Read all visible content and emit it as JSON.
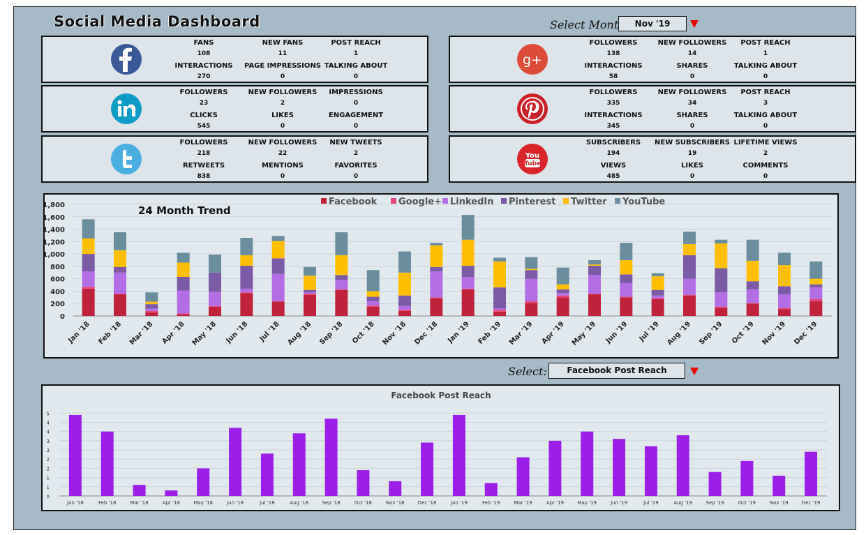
{
  "header": {
    "title": "Social Media Dashboard",
    "month_label": "Select Month",
    "month_value": "Nov '19",
    "select_label": "Select:",
    "select_value": "Facebook Post Reach"
  },
  "cards": [
    {
      "id": "facebook",
      "icon": "facebook-icon",
      "color": "#3b5998",
      "stats": [
        {
          "label": "FANS",
          "value": "108"
        },
        {
          "label": "NEW FANS",
          "value": "11"
        },
        {
          "label": "POST REACH",
          "value": "1"
        },
        {
          "label": "INTERACTIONS",
          "value": "270"
        },
        {
          "label": "PAGE IMPRESSIONS",
          "value": "0"
        },
        {
          "label": "TALKING ABOUT",
          "value": "0"
        }
      ]
    },
    {
      "id": "googleplus",
      "icon": "google-plus-icon",
      "color": "#dd4b39",
      "stats": [
        {
          "label": "FOLLOWERS",
          "value": "138"
        },
        {
          "label": "NEW FOLLOWERS",
          "value": "14"
        },
        {
          "label": "POST REACH",
          "value": "1"
        },
        {
          "label": "INTERACTIONS",
          "value": "58"
        },
        {
          "label": "SHARES",
          "value": "0"
        },
        {
          "label": "TALKING ABOUT",
          "value": "0"
        }
      ]
    },
    {
      "id": "linkedin",
      "icon": "linkedin-icon",
      "color": "#0e9bc6",
      "stats": [
        {
          "label": "FOLLOWERS",
          "value": "23"
        },
        {
          "label": "NEW FOLLOWERS",
          "value": "2"
        },
        {
          "label": "IMPRESSIONS",
          "value": "0"
        },
        {
          "label": "CLICKS",
          "value": "545"
        },
        {
          "label": "LIKES",
          "value": "0"
        },
        {
          "label": "ENGAGEMENT",
          "value": "0"
        }
      ]
    },
    {
      "id": "pinterest",
      "icon": "pinterest-icon",
      "color": "#cb2027",
      "stats": [
        {
          "label": "FOLLOWERS",
          "value": "335"
        },
        {
          "label": "NEW FOLLOWERS",
          "value": "34"
        },
        {
          "label": "POST REACH",
          "value": "3"
        },
        {
          "label": "INTERACTIONS",
          "value": "345"
        },
        {
          "label": "SHARES",
          "value": "0"
        },
        {
          "label": "TALKING ABOUT",
          "value": "0"
        }
      ]
    },
    {
      "id": "twitter",
      "icon": "twitter-icon",
      "color": "#4aaee0",
      "stats": [
        {
          "label": "FOLLOWERS",
          "value": "218"
        },
        {
          "label": "NEW FOLLOWERS",
          "value": "22"
        },
        {
          "label": "NEW TWEETS",
          "value": "2"
        },
        {
          "label": "RETWEETS",
          "value": "838"
        },
        {
          "label": "MENTIONS",
          "value": "0"
        },
        {
          "label": "FAVORITES",
          "value": "0"
        }
      ]
    },
    {
      "id": "youtube",
      "icon": "youtube-icon",
      "color": "#d9252a",
      "stats": [
        {
          "label": "SUBSCRIBERS",
          "value": "194"
        },
        {
          "label": "NEW SUBSCRIBERS",
          "value": "19"
        },
        {
          "label": "LIFETIME VIEWS",
          "value": "2"
        },
        {
          "label": "VIEWS",
          "value": "485"
        },
        {
          "label": "LIKES",
          "value": "0"
        },
        {
          "label": "COMMENTS",
          "value": "0"
        }
      ]
    }
  ],
  "icon_text": {
    "facebook": "f",
    "googleplus": "g+",
    "linkedin": "in",
    "pinterest": "P",
    "youtube_top": "You",
    "youtube_bottom": "Tube"
  },
  "chart_data": [
    {
      "type": "bar",
      "stacked": true,
      "title": "24 Month Trend",
      "categories": [
        "Jan '18",
        "Feb '18",
        "Mar '18",
        "Apr '18",
        "May '18",
        "Jun '18",
        "Jul '18",
        "Aug '18",
        "Sep '18",
        "Oct '18",
        "Nov '18",
        "Dec '18",
        "Jan '19",
        "Feb '19",
        "Mar '19",
        "Apr '19",
        "May '19",
        "Jun '19",
        "Jul '19",
        "Aug '19",
        "Sep '19",
        "Oct '19",
        "Nov '19",
        "Dec '19"
      ],
      "ylim": [
        0,
        1800
      ],
      "yticks": [
        "0",
        "200",
        "400",
        "600",
        "800",
        "1,000",
        "1,200",
        "1,400",
        "1,600",
        "1,800"
      ],
      "legend_position": "top",
      "grid": true,
      "series": [
        {
          "name": "Facebook",
          "color": "#c0223b",
          "values": [
            440,
            350,
            60,
            30,
            150,
            370,
            230,
            340,
            420,
            150,
            80,
            290,
            430,
            70,
            210,
            300,
            350,
            300,
            270,
            330,
            130,
            200,
            110,
            240
          ]
        },
        {
          "name": "Google+",
          "color": "#e8457a",
          "values": [
            30,
            10,
            20,
            10,
            10,
            10,
            10,
            20,
            10,
            20,
            20,
            10,
            10,
            30,
            30,
            30,
            10,
            10,
            20,
            10,
            20,
            10,
            20,
            30
          ]
        },
        {
          "name": "LinkedIn",
          "color": "#b36ee6",
          "values": [
            250,
            340,
            40,
            370,
            230,
            60,
            440,
            20,
            150,
            70,
            60,
            420,
            190,
            20,
            360,
            40,
            300,
            220,
            40,
            260,
            230,
            220,
            220,
            190
          ]
        },
        {
          "name": "Pinterest",
          "color": "#7b5aa6",
          "values": [
            280,
            90,
            70,
            220,
            310,
            370,
            250,
            40,
            80,
            70,
            170,
            70,
            180,
            340,
            140,
            60,
            150,
            140,
            90,
            380,
            390,
            130,
            130,
            50
          ]
        },
        {
          "name": "Twitter",
          "color": "#ffbf00",
          "values": [
            250,
            270,
            40,
            230,
            0,
            170,
            280,
            230,
            320,
            90,
            370,
            350,
            420,
            420,
            20,
            80,
            20,
            230,
            220,
            180,
            400,
            330,
            340,
            90
          ]
        },
        {
          "name": "YouTube",
          "color": "#6b8e9e",
          "values": [
            310,
            290,
            150,
            160,
            290,
            280,
            80,
            140,
            370,
            340,
            340,
            40,
            400,
            60,
            190,
            270,
            70,
            280,
            50,
            200,
            60,
            340,
            200,
            280
          ]
        }
      ]
    },
    {
      "type": "bar",
      "title": "Facebook Post Reach",
      "categories": [
        "Jan '18",
        "Feb '18",
        "Mar '18",
        "Apr '18",
        "May '18",
        "Jun '18",
        "Jul '18",
        "Aug '18",
        "Sep '18",
        "Oct '18",
        "Nov '18",
        "Dec '18",
        "Jan '19",
        "Feb '19",
        "Mar '19",
        "Apr '19",
        "May '19",
        "Jun '19",
        "Jul '19",
        "Aug '19",
        "Sep '19",
        "Oct '19",
        "Nov '19",
        "Dec '19"
      ],
      "values": [
        4.4,
        3.5,
        0.6,
        0.3,
        1.5,
        3.7,
        2.3,
        3.4,
        4.2,
        1.4,
        0.8,
        2.9,
        4.4,
        0.7,
        2.1,
        3.0,
        3.5,
        3.1,
        2.7,
        3.3,
        1.3,
        1.9,
        1.1,
        2.4
      ],
      "ylim": [
        0,
        4.7
      ],
      "yticks": [
        "0",
        "1",
        "1",
        "2",
        "2",
        "3",
        "3",
        "4",
        "4",
        "5",
        "5"
      ],
      "color": "#9b1fe8",
      "grid": true
    }
  ]
}
